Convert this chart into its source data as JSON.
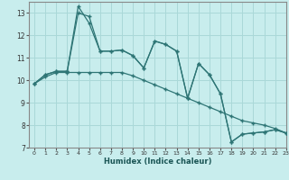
{
  "title": "",
  "xlabel": "Humidex (Indice chaleur)",
  "bg_color": "#c8eded",
  "line_color": "#2e7575",
  "grid_color": "#aad8d8",
  "xlim": [
    -0.5,
    23
  ],
  "ylim": [
    7,
    13.5
  ],
  "yticks": [
    7,
    8,
    9,
    10,
    11,
    12,
    13
  ],
  "xticks": [
    0,
    1,
    2,
    3,
    4,
    5,
    6,
    7,
    8,
    9,
    10,
    11,
    12,
    13,
    14,
    15,
    16,
    17,
    18,
    19,
    20,
    21,
    22,
    23
  ],
  "series1_x": [
    0,
    1,
    2,
    3,
    4,
    5,
    6,
    7,
    8,
    9,
    10,
    11,
    12,
    13,
    14,
    15,
    16,
    17,
    18,
    19,
    20,
    21,
    22,
    23
  ],
  "series1_y": [
    9.85,
    10.25,
    10.4,
    10.4,
    13.0,
    12.85,
    11.3,
    11.3,
    11.35,
    11.1,
    10.55,
    11.75,
    11.6,
    11.3,
    9.2,
    10.75,
    10.25,
    9.4,
    7.25,
    7.6,
    7.65,
    7.7,
    7.8,
    7.65
  ],
  "series2_x": [
    0,
    1,
    2,
    3,
    4,
    5,
    6,
    7,
    8,
    9,
    10,
    11,
    12,
    13,
    14,
    15,
    16,
    17,
    18,
    19,
    20,
    21,
    22,
    23
  ],
  "series2_y": [
    9.85,
    10.25,
    10.4,
    10.4,
    13.3,
    12.55,
    11.3,
    11.3,
    11.35,
    11.1,
    10.55,
    11.75,
    11.6,
    11.3,
    9.2,
    10.75,
    10.25,
    9.4,
    7.25,
    7.6,
    7.65,
    7.7,
    7.8,
    7.65
  ],
  "series3_x": [
    0,
    1,
    2,
    3,
    4,
    5,
    6,
    7,
    8,
    9,
    10,
    11,
    12,
    13,
    14,
    15,
    16,
    17,
    18,
    19,
    20,
    21,
    22,
    23
  ],
  "series3_y": [
    9.85,
    10.15,
    10.35,
    10.35,
    10.35,
    10.35,
    10.35,
    10.35,
    10.35,
    10.2,
    10.0,
    9.8,
    9.6,
    9.4,
    9.2,
    9.0,
    8.8,
    8.6,
    8.4,
    8.2,
    8.1,
    8.0,
    7.85,
    7.65
  ]
}
